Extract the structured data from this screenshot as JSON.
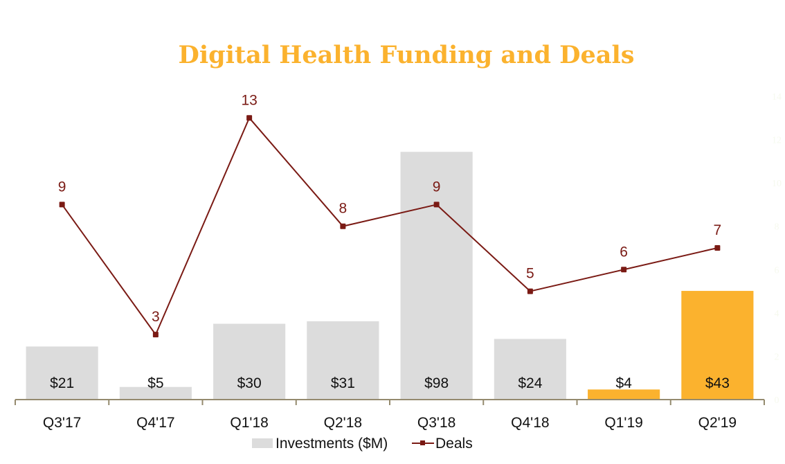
{
  "chart_data": {
    "type": "bar",
    "title": "Digital Health Funding and Deals",
    "xlabel": "",
    "ylabel": "",
    "categories": [
      "Q3'17",
      "Q4'17",
      "Q1'18",
      "Q2'18",
      "Q3'18",
      "Q4'18",
      "Q1'19",
      "Q2'19"
    ],
    "series": [
      {
        "name": "Investments ($M)",
        "kind": "bar",
        "axis": "primary",
        "values": [
          21,
          5,
          30,
          31,
          98,
          24,
          4,
          43
        ],
        "labels": [
          "$21",
          "$5",
          "$30",
          "$31",
          "$98",
          "$24",
          "$4",
          "$43"
        ],
        "colors": [
          "#DCDCDC",
          "#DCDCDC",
          "#DCDCDC",
          "#DCDCDC",
          "#DCDCDC",
          "#DCDCDC",
          "#FBB22E",
          "#FBB22E"
        ]
      },
      {
        "name": "Deals",
        "kind": "line",
        "axis": "secondary",
        "values": [
          9,
          3,
          13,
          8,
          9,
          5,
          6,
          7
        ],
        "labels": [
          "9",
          "3",
          "13",
          "8",
          "9",
          "5",
          "6",
          "7"
        ],
        "color": "#7A1A14"
      }
    ],
    "ylim": [
      0,
      120
    ],
    "y2lim": [
      0,
      14
    ],
    "y2_ticks": [
      "14",
      "12",
      "10",
      "8",
      "6",
      "4",
      "2",
      "0"
    ],
    "grid": false,
    "legend": "bottom-center",
    "axis_color": "#948A6E"
  },
  "legend": {
    "items": [
      {
        "label": "Investments ($M)",
        "swatch": "#DCDCDC"
      },
      {
        "label": "Deals",
        "swatch": "#7A1A14"
      }
    ]
  }
}
